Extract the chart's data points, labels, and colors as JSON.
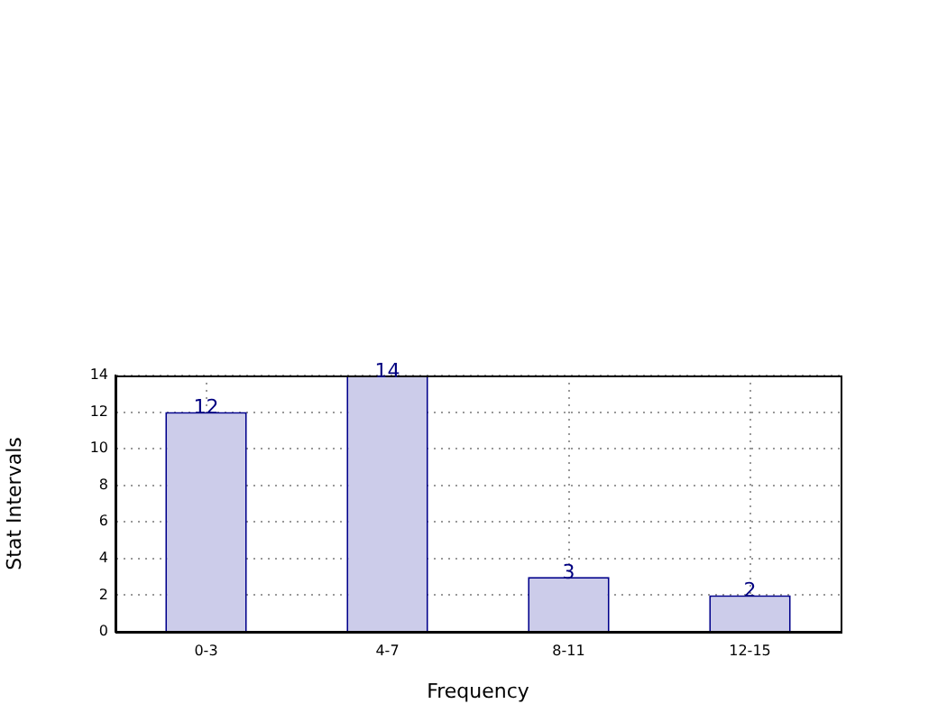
{
  "chart_data": {
    "type": "bar",
    "xlabel": "Frequency",
    "ylabel": "Stat Intervals",
    "categories": [
      "0-3",
      "4-7",
      "8-11",
      "12-15"
    ],
    "values": [
      12,
      14,
      3,
      2
    ],
    "color": "#ccccea",
    "ylim": [
      0,
      14
    ],
    "yticks": [
      0,
      2,
      4,
      6,
      8,
      10,
      12,
      14
    ],
    "grid": true,
    "data_labels": true
  }
}
